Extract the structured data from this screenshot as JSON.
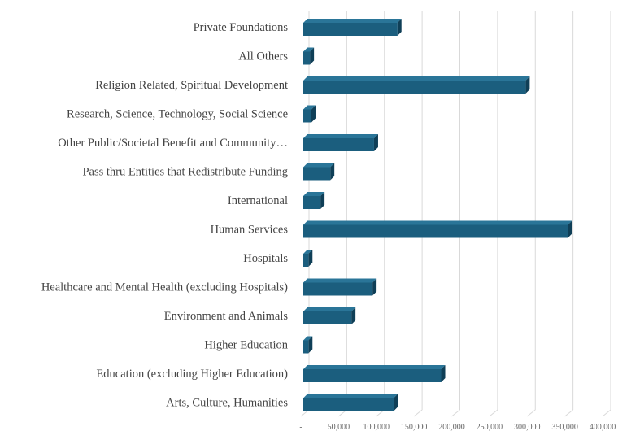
{
  "chart_data": {
    "type": "bar",
    "orientation": "horizontal",
    "style": "3d",
    "title": "",
    "xlabel": "",
    "ylabel": "",
    "xlim": [
      0,
      400000
    ],
    "grid": true,
    "legend": "none",
    "bar_color": "#1b5e7e",
    "categories": [
      "Private Foundations",
      "All Others",
      "Religion Related, Spiritual Development",
      "Research, Science, Technology, Social Science",
      "Other Public/Societal Benefit and Community…",
      "Pass thru Entities that Redistribute Funding",
      "International",
      "Human Services",
      "Hospitals",
      "Healthcare and Mental Health (excluding Hospitals)",
      "Environment and Animals",
      "Higher Education",
      "Education (excluding Higher Education)",
      "Arts, Culture, Humanities"
    ],
    "values": [
      128000,
      12000,
      298000,
      14000,
      97000,
      39000,
      26000,
      354000,
      10000,
      95000,
      67000,
      10000,
      186000,
      123000
    ],
    "tick_labels": [
      "-",
      "50,000",
      "100,000",
      "150,000",
      "200,000",
      "250,000",
      "300,000",
      "350,000",
      "400,000"
    ],
    "tick_values": [
      0,
      50000,
      100000,
      150000,
      200000,
      250000,
      300000,
      350000,
      400000
    ]
  }
}
